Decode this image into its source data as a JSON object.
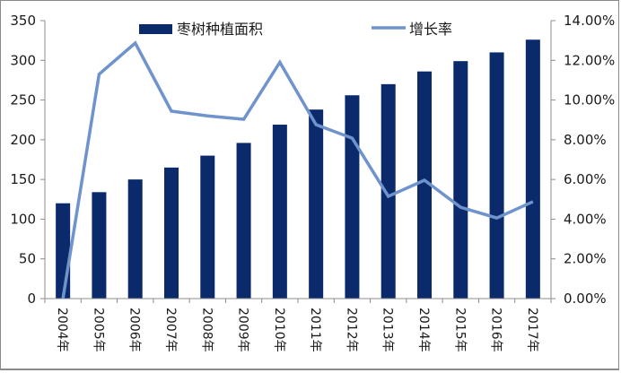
{
  "chart_data": {
    "type": "bar+line",
    "title": "",
    "categories": [
      "2004年",
      "2005年",
      "2006年",
      "2007年",
      "2008年",
      "2009年",
      "2010年",
      "2011年",
      "2012年",
      "2013年",
      "2014年",
      "2015年",
      "2016年",
      "2017年"
    ],
    "series": [
      {
        "name": "枣树种植面积",
        "type": "bar",
        "axis": "left",
        "color": "#0b2a6b",
        "values": [
          120,
          134,
          150,
          165,
          180,
          196,
          219,
          238,
          256,
          270,
          286,
          299,
          310,
          326
        ]
      },
      {
        "name": "增长率",
        "type": "line",
        "axis": "right",
        "color": "#6f93cc",
        "values": [
          0.0,
          11.3,
          12.87,
          9.44,
          9.2,
          9.03,
          11.9,
          8.76,
          8.08,
          5.15,
          5.96,
          4.6,
          4.06,
          4.88
        ]
      }
    ],
    "left_axis": {
      "min": 0,
      "max": 350,
      "step": 50,
      "ticks": [
        "0",
        "50",
        "100",
        "150",
        "200",
        "250",
        "300",
        "350"
      ]
    },
    "right_axis": {
      "min": 0,
      "max": 14,
      "step": 2,
      "ticks": [
        "0.00%",
        "2.00%",
        "4.00%",
        "6.00%",
        "8.00%",
        "10.00%",
        "12.00%",
        "14.00%"
      ]
    },
    "legend": {
      "position": "top",
      "entries": [
        "枣树种植面积",
        "增长率"
      ]
    },
    "grid": false,
    "xlabel": "",
    "ylabel": ""
  }
}
